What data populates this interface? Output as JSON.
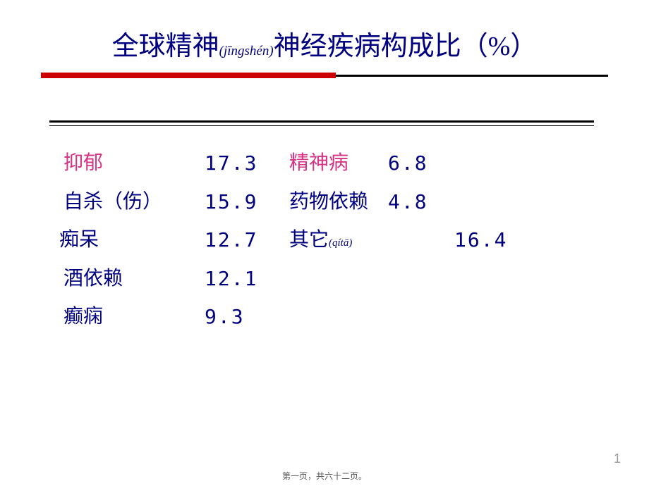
{
  "title": {
    "pre": "全球精神",
    "pinyin": "(jīngshén)",
    "post": "神经疾病构成比（%）",
    "color": "#000080",
    "main_fontsize": 38,
    "pinyin_fontsize": 19
  },
  "divider": {
    "red_color": "#cc0000",
    "black_color": "#000000"
  },
  "table": {
    "text_color": "#000080",
    "highlight_color": "#d63384",
    "fontsize": 28,
    "rows": [
      {
        "l1": "抑郁",
        "v1": "17.3",
        "l2": "精神病",
        "v2": "6.8",
        "hl1": true,
        "hl2": true
      },
      {
        "l1": "自杀（伤）",
        "v1": "15.9",
        "l2": "药物依赖",
        "v2": "4.8",
        "hl1": false,
        "hl2": false
      },
      {
        "l1": "痴呆",
        "v1": "12.7",
        "l2": "其它",
        "l2_pinyin": "(qítā)",
        "v2": "16.4",
        "hl1": false,
        "hl2": false,
        "l1_pad": -6,
        "v2_pad": 94
      },
      {
        "l1": "酒依赖",
        "v1": "12.1",
        "l2": "",
        "v2": "",
        "hl1": false,
        "hl2": false
      },
      {
        "l1": "癫痫",
        "v1": " 9.3",
        "l2": "",
        "v2": "",
        "hl1": false,
        "hl2": false
      }
    ]
  },
  "page_num": "1",
  "footer": "第一页，共六十二页。",
  "background_color": "#ffffff"
}
